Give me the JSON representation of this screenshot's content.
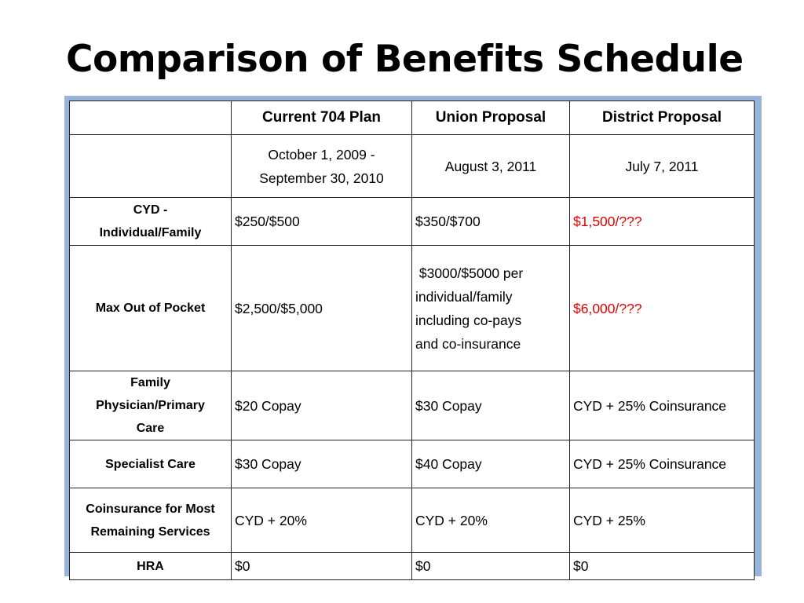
{
  "title": "Comparison of Benefits Schedule",
  "table": {
    "header": {
      "corner": "",
      "columns": [
        "Current 704 Plan",
        "Union Proposal",
        "District Proposal"
      ]
    },
    "dates": {
      "label": "",
      "current_line1": "October 1, 2009 -",
      "current_line2": "September 30, 2010",
      "union": "August 3, 2011",
      "district": "July 7, 2011"
    },
    "rows": [
      {
        "label_line1": "CYD -",
        "label_line2": "Individual/Family",
        "current": "$250/$500",
        "union": "$350/$700",
        "district": "$1,500/???"
      },
      {
        "label": "Max Out of Pocket",
        "current": "$2,500/$5,000",
        "union_line1": " $3000/$5000 per",
        "union_line2": "individual/family",
        "union_line3": "including co-pays",
        "union_line4": "and co-insurance",
        "district": "$6,000/???"
      },
      {
        "label_line1": "Family",
        "label_line2": "Physician/Primary",
        "label_line3": "Care",
        "current": "$20 Copay",
        "union": "$30 Copay",
        "district": "CYD + 25% Coinsurance"
      },
      {
        "label": "Specialist Care",
        "current": "$30 Copay",
        "union": "$40 Copay",
        "district": "CYD + 25% Coinsurance"
      },
      {
        "label_line1": "Coinsurance for Most",
        "label_line2": "Remaining Services",
        "current": "CYD + 20%",
        "union": "CYD + 20%",
        "district": "CYD + 25%"
      },
      {
        "label": "HRA",
        "current": "$0",
        "union": "$0",
        "district": "$0"
      }
    ],
    "colors": {
      "frame": "#98b4d8",
      "highlight": "#e00000"
    }
  }
}
